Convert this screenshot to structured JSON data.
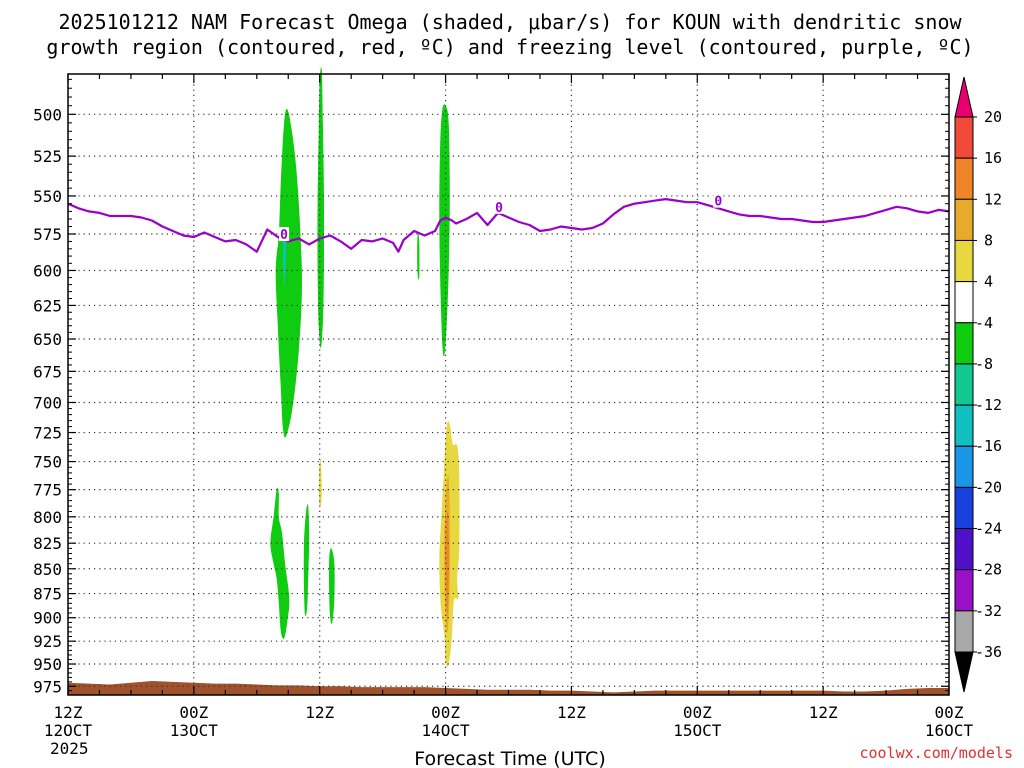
{
  "title": {
    "line1": "2025101212 NAM Forecast Omega (shaded, μbar/s) for KOUN with dendritic snow",
    "line2": "growth region (contoured, red, ºC) and freezing level (contoured, purple, ºC)"
  },
  "credit": "coolwx.com/models",
  "chart_data": {
    "type": "heatmap",
    "title": "2025101212 NAM Forecast Omega (shaded, μbar/s) for KOUN with dendritic snow growth region (contoured, red, ºC) and freezing level (contoured, purple, ºC)",
    "xlabel": "Forecast Time (UTC)",
    "ylabel": "",
    "x_range_hours": [
      0,
      84
    ],
    "y_scale": "log-pressure",
    "y_range_hpa": [
      985,
      477
    ],
    "y_reversed": true,
    "y_ticks": [
      500,
      525,
      550,
      575,
      600,
      625,
      650,
      675,
      700,
      725,
      750,
      775,
      800,
      825,
      850,
      875,
      900,
      925,
      950,
      975
    ],
    "x_ticks": [
      {
        "hour": 0,
        "line1": "12Z",
        "line2": "12OCT",
        "line3": "2025"
      },
      {
        "hour": 12,
        "line1": "00Z",
        "line2": "13OCT",
        "line3": ""
      },
      {
        "hour": 24,
        "line1": "12Z",
        "line2": "",
        "line3": ""
      },
      {
        "hour": 36,
        "line1": "00Z",
        "line2": "14OCT",
        "line3": ""
      },
      {
        "hour": 48,
        "line1": "12Z",
        "line2": "",
        "line3": ""
      },
      {
        "hour": 60,
        "line1": "00Z",
        "line2": "15OCT",
        "line3": ""
      },
      {
        "hour": 72,
        "line1": "12Z",
        "line2": "",
        "line3": ""
      },
      {
        "hour": 84,
        "line1": "00Z",
        "line2": "16OCT",
        "line3": ""
      }
    ],
    "grid": true,
    "colorbar": {
      "placement": "right",
      "units": "μbar/s",
      "bins": [
        {
          "from": 20,
          "to": null,
          "color": "#e8006e"
        },
        {
          "from": 16,
          "to": 20,
          "color": "#f04a3a"
        },
        {
          "from": 12,
          "to": 16,
          "color": "#f08428"
        },
        {
          "from": 8,
          "to": 12,
          "color": "#e8aa2a"
        },
        {
          "from": 4,
          "to": 8,
          "color": "#e8d840"
        },
        {
          "from": -4,
          "to": 4,
          "color": "#ffffff"
        },
        {
          "from": -8,
          "to": -4,
          "color": "#10cc10"
        },
        {
          "from": -12,
          "to": -8,
          "color": "#10c890"
        },
        {
          "from": -16,
          "to": -12,
          "color": "#10c0c0"
        },
        {
          "from": -20,
          "to": -16,
          "color": "#1a96e8"
        },
        {
          "from": -24,
          "to": -20,
          "color": "#1a40e0"
        },
        {
          "from": -28,
          "to": -24,
          "color": "#5010c8"
        },
        {
          "from": -32,
          "to": -28,
          "color": "#9a10c8"
        },
        {
          "from": -36,
          "to": -32,
          "color": "#a8a8a8"
        },
        {
          "from": null,
          "to": -36,
          "color": "#000000"
        }
      ],
      "tick_labels": [
        "20",
        "16",
        "12",
        "8",
        "4",
        "-4",
        "-8",
        "-12",
        "-16",
        "-20",
        "-24",
        "-28",
        "-32",
        "-36"
      ]
    },
    "freezing_level": {
      "label": "0",
      "color": "#9900cc",
      "points": [
        [
          0,
          555
        ],
        [
          1,
          558
        ],
        [
          2,
          560
        ],
        [
          3,
          561
        ],
        [
          4,
          563
        ],
        [
          5,
          563
        ],
        [
          6,
          563
        ],
        [
          7,
          564
        ],
        [
          8,
          566
        ],
        [
          9,
          570
        ],
        [
          10,
          573
        ],
        [
          11,
          576
        ],
        [
          12,
          577
        ],
        [
          13,
          574
        ],
        [
          14,
          577
        ],
        [
          15,
          580
        ],
        [
          16,
          579
        ],
        [
          17,
          582
        ],
        [
          18,
          587
        ],
        [
          19,
          572
        ],
        [
          20,
          577
        ],
        [
          21,
          580
        ],
        [
          22,
          578
        ],
        [
          23,
          582
        ],
        [
          24,
          578
        ],
        [
          25,
          576
        ],
        [
          26,
          580
        ],
        [
          27,
          585
        ],
        [
          28,
          579
        ],
        [
          29,
          580
        ],
        [
          30,
          578
        ],
        [
          31,
          581
        ],
        [
          31.5,
          587
        ],
        [
          32,
          579
        ],
        [
          33,
          573
        ],
        [
          34,
          576
        ],
        [
          35,
          573
        ],
        [
          35.5,
          566
        ],
        [
          36,
          564
        ],
        [
          36.6,
          566
        ],
        [
          37,
          568
        ],
        [
          38,
          565
        ],
        [
          39,
          561
        ],
        [
          40,
          569
        ],
        [
          41,
          561
        ],
        [
          42,
          564
        ],
        [
          43,
          567
        ],
        [
          44,
          569
        ],
        [
          45,
          573
        ],
        [
          46,
          572
        ],
        [
          47,
          570
        ],
        [
          48,
          571
        ],
        [
          49,
          572
        ],
        [
          50,
          571
        ],
        [
          51,
          568
        ],
        [
          52,
          562
        ],
        [
          53,
          557
        ],
        [
          54,
          555
        ],
        [
          55,
          554
        ],
        [
          56,
          553
        ],
        [
          57,
          552
        ],
        [
          58,
          553
        ],
        [
          59,
          554
        ],
        [
          60,
          554
        ],
        [
          61,
          556
        ],
        [
          62,
          558
        ],
        [
          63,
          560
        ],
        [
          64,
          562
        ],
        [
          65,
          563
        ],
        [
          66,
          563
        ],
        [
          67,
          564
        ],
        [
          68,
          565
        ],
        [
          69,
          565
        ],
        [
          70,
          566
        ],
        [
          71,
          567
        ],
        [
          72,
          567
        ],
        [
          73,
          566
        ],
        [
          74,
          565
        ],
        [
          75,
          564
        ],
        [
          76,
          563
        ],
        [
          77,
          561
        ],
        [
          78,
          559
        ],
        [
          79,
          557
        ],
        [
          80,
          558
        ],
        [
          81,
          560
        ],
        [
          82,
          561
        ],
        [
          83,
          559
        ],
        [
          84,
          560
        ]
      ],
      "label_points": [
        [
          20.6,
          575
        ],
        [
          41.1,
          557
        ],
        [
          62,
          553
        ]
      ]
    },
    "omega_regions": [
      {
        "color": "#10cc10",
        "outline": [
          [
            20.1,
            575
          ],
          [
            20.3,
            540
          ],
          [
            20.6,
            505
          ],
          [
            20.9,
            497
          ],
          [
            21.3,
            508
          ],
          [
            21.8,
            535
          ],
          [
            22.2,
            580
          ],
          [
            22.3,
            615
          ],
          [
            22.0,
            660
          ],
          [
            21.4,
            705
          ],
          [
            20.8,
            728
          ],
          [
            20.5,
            722
          ],
          [
            20.3,
            690
          ],
          [
            20.0,
            640
          ],
          [
            19.8,
            600
          ]
        ]
      },
      {
        "color": "#10c0c0",
        "outline": [
          [
            20.6,
            575
          ],
          [
            20.8,
            578
          ],
          [
            20.7,
            605
          ],
          [
            20.6,
            610
          ],
          [
            20.5,
            588
          ]
        ]
      },
      {
        "color": "#10cc10",
        "outline": [
          [
            23.8,
            555
          ],
          [
            23.9,
            510
          ],
          [
            24.0,
            480
          ],
          [
            24.2,
            475
          ],
          [
            24.3,
            505
          ],
          [
            24.4,
            545
          ],
          [
            24.4,
            600
          ],
          [
            24.3,
            638
          ],
          [
            24.1,
            657
          ],
          [
            23.9,
            640
          ],
          [
            23.8,
            600
          ]
        ]
      },
      {
        "color": "#10cc10",
        "outline": [
          [
            33.3,
            580
          ],
          [
            33.4,
            574
          ],
          [
            33.5,
            583
          ],
          [
            33.5,
            603
          ],
          [
            33.4,
            606
          ],
          [
            33.3,
            598
          ]
        ]
      },
      {
        "color": "#10cc10",
        "outline": [
          [
            35.4,
            560
          ],
          [
            35.5,
            515
          ],
          [
            35.7,
            497
          ],
          [
            36.0,
            495
          ],
          [
            36.3,
            505
          ],
          [
            36.4,
            550
          ],
          [
            36.3,
            600
          ],
          [
            36.1,
            640
          ],
          [
            35.9,
            662
          ],
          [
            35.7,
            655
          ],
          [
            35.5,
            610
          ]
        ]
      },
      {
        "color": "#10cc10",
        "outline": [
          [
            19.3,
            825
          ],
          [
            19.6,
            800
          ],
          [
            19.9,
            775
          ],
          [
            20.1,
            778
          ],
          [
            20.1,
            800
          ],
          [
            20.4,
            815
          ],
          [
            20.7,
            845
          ],
          [
            21.1,
            880
          ],
          [
            20.9,
            905
          ],
          [
            20.6,
            922
          ],
          [
            20.3,
            915
          ],
          [
            20.1,
            885
          ],
          [
            19.9,
            860
          ],
          [
            19.6,
            845
          ]
        ]
      },
      {
        "color": "#10cc10",
        "outline": [
          [
            22.5,
            825
          ],
          [
            22.7,
            795
          ],
          [
            22.9,
            790
          ],
          [
            23.0,
            820
          ],
          [
            22.9,
            860
          ],
          [
            22.8,
            890
          ],
          [
            22.6,
            897
          ],
          [
            22.5,
            870
          ]
        ]
      },
      {
        "color": "#e8d840",
        "outline": [
          [
            23.95,
            755
          ],
          [
            24.1,
            750
          ],
          [
            24.2,
            775
          ],
          [
            24.1,
            790
          ],
          [
            23.95,
            785
          ]
        ]
      },
      {
        "color": "#10cc10",
        "outline": [
          [
            24.9,
            840
          ],
          [
            25.1,
            830
          ],
          [
            25.4,
            845
          ],
          [
            25.4,
            880
          ],
          [
            25.2,
            905
          ],
          [
            25.0,
            900
          ],
          [
            24.9,
            875
          ]
        ]
      },
      {
        "color": "#e8d840",
        "outline": [
          [
            35.6,
            800
          ],
          [
            35.8,
            765
          ],
          [
            36.1,
            720
          ],
          [
            36.4,
            718
          ],
          [
            36.7,
            735
          ],
          [
            37.1,
            736
          ],
          [
            37.3,
            760
          ],
          [
            37.3,
            830
          ],
          [
            37.1,
            860
          ],
          [
            37.2,
            880
          ],
          [
            36.8,
            882
          ],
          [
            36.6,
            920
          ],
          [
            36.3,
            950
          ],
          [
            36.0,
            948
          ],
          [
            35.9,
            920
          ],
          [
            35.7,
            903
          ],
          [
            35.5,
            880
          ],
          [
            35.4,
            840
          ]
        ]
      },
      {
        "color": "#e8aa2a",
        "outline": [
          [
            35.9,
            810
          ],
          [
            36.1,
            770
          ],
          [
            36.3,
            765
          ],
          [
            36.4,
            800
          ],
          [
            36.4,
            850
          ],
          [
            36.3,
            900
          ],
          [
            36.1,
            915
          ],
          [
            35.9,
            870
          ]
        ]
      },
      {
        "color": "#f08428",
        "outline": [
          [
            36.0,
            815
          ],
          [
            36.2,
            795
          ],
          [
            36.3,
            820
          ],
          [
            36.3,
            860
          ],
          [
            36.2,
            895
          ],
          [
            36.1,
            890
          ],
          [
            36.0,
            850
          ]
        ]
      }
    ],
    "terrain": {
      "color": "#a0522d",
      "surface_pressure": [
        [
          0,
          971
        ],
        [
          2,
          972
        ],
        [
          4,
          973
        ],
        [
          6,
          971
        ],
        [
          8,
          969
        ],
        [
          10,
          970
        ],
        [
          12,
          971
        ],
        [
          14,
          972
        ],
        [
          16,
          972
        ],
        [
          18,
          973
        ],
        [
          20,
          974
        ],
        [
          22,
          974
        ],
        [
          24,
          975
        ],
        [
          26,
          975
        ],
        [
          28,
          976
        ],
        [
          30,
          976
        ],
        [
          32,
          976
        ],
        [
          34,
          976
        ],
        [
          36,
          977
        ],
        [
          38,
          978
        ],
        [
          40,
          979
        ],
        [
          42,
          979
        ],
        [
          44,
          979
        ],
        [
          46,
          980
        ],
        [
          48,
          980
        ],
        [
          50,
          981
        ],
        [
          52,
          982
        ],
        [
          54,
          981
        ],
        [
          56,
          980
        ],
        [
          58,
          980
        ],
        [
          60,
          980
        ],
        [
          62,
          980
        ],
        [
          64,
          980
        ],
        [
          66,
          980
        ],
        [
          68,
          980
        ],
        [
          70,
          980
        ],
        [
          72,
          980
        ],
        [
          74,
          981
        ],
        [
          76,
          981
        ],
        [
          78,
          980
        ],
        [
          80,
          978
        ],
        [
          82,
          977
        ],
        [
          84,
          977
        ]
      ]
    }
  }
}
